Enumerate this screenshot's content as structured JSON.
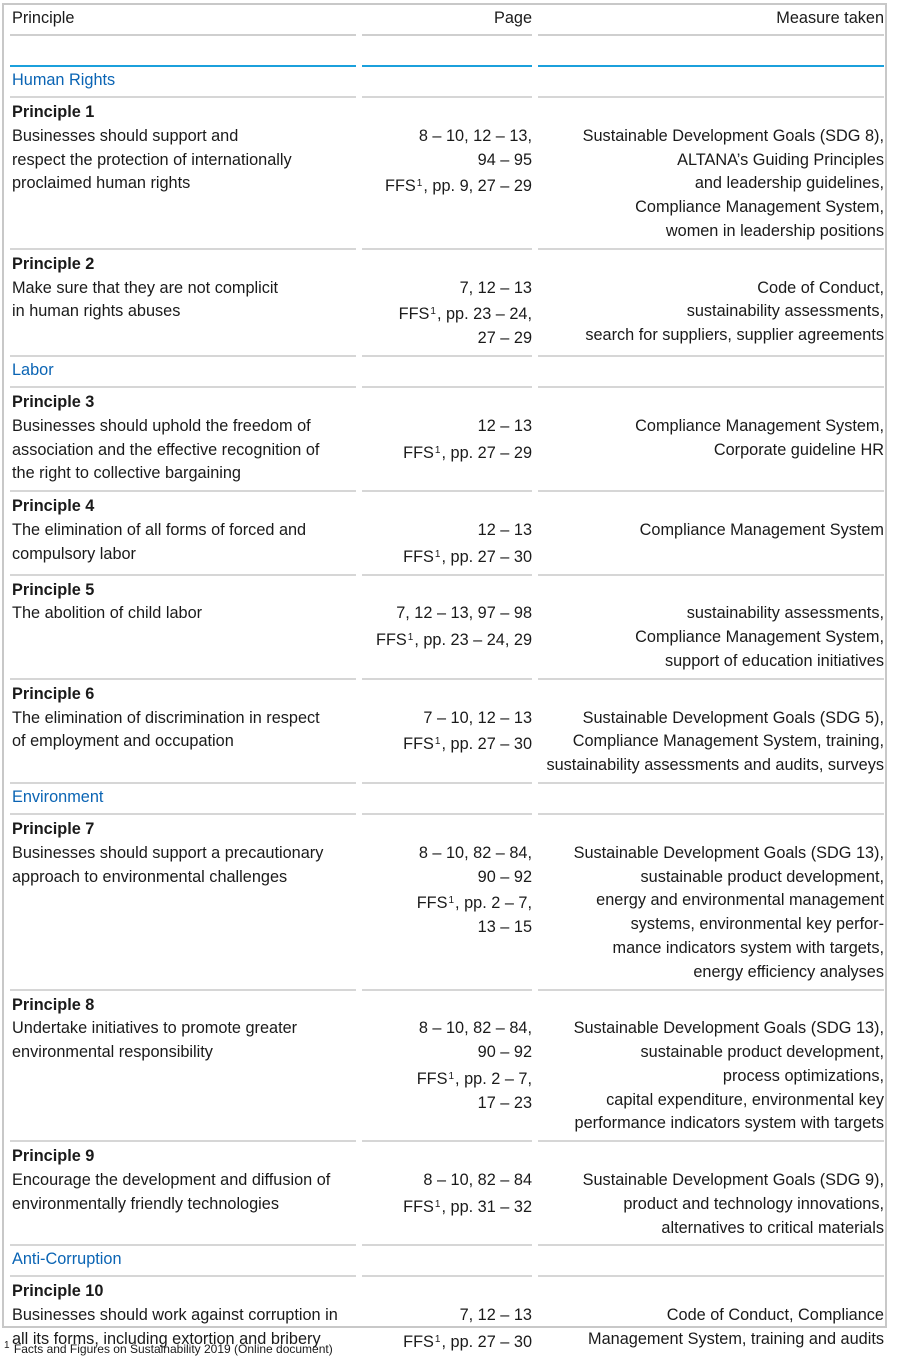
{
  "header": {
    "principle": "Principle",
    "page": "Page",
    "measure": "Measure taken"
  },
  "accent_color": "#0a64b4",
  "rule_color": "#1ba0dc",
  "rows": [
    {
      "type": "section",
      "label": "Human Rights"
    },
    {
      "type": "principle",
      "title": "Principle 1",
      "text": [
        "Businesses should support and",
        "respect the protection of internationally",
        "proclaimed human rights"
      ],
      "pages": [
        "8 – 10, 12 – 13,",
        "94 – 95",
        "FFS¹, pp. 9, 27 – 29"
      ],
      "measures": [
        "Sustainable Development Goals (SDG 8),",
        "ALTANA’s Guiding Principles",
        "and leadership guidelines,",
        "Compliance Management System,",
        "women in leadership positions"
      ]
    },
    {
      "type": "principle",
      "title": "Principle 2",
      "text": [
        "Make sure that they are not complicit",
        "in human rights abuses"
      ],
      "pages": [
        "7, 12 – 13",
        "FFS¹, pp. 23 – 24,",
        "27 – 29"
      ],
      "measures": [
        "Code of Conduct,",
        "sustainability assessments,",
        "search for suppliers, supplier agreements"
      ]
    },
    {
      "type": "section",
      "label": "Labor"
    },
    {
      "type": "principle",
      "title": "Principle 3",
      "text": [
        "Businesses should uphold the freedom of",
        "association and the effective recognition of",
        "the right to collective bargaining"
      ],
      "pages": [
        "12 – 13",
        "FFS¹, pp. 27 – 29"
      ],
      "measures": [
        "Compliance Management System,",
        "Corporate guideline HR"
      ]
    },
    {
      "type": "principle",
      "title": "Principle 4",
      "text": [
        "The elimination of all forms of forced and",
        "compulsory labor"
      ],
      "pages": [
        "12 – 13",
        "FFS¹, pp. 27 – 30"
      ],
      "measures": [
        "Compliance Management System"
      ]
    },
    {
      "type": "principle",
      "title": "Principle 5",
      "text": [
        "The abolition of child labor"
      ],
      "pages": [
        "7, 12 – 13, 97 – 98",
        "FFS¹, pp. 23 – 24, 29"
      ],
      "measures": [
        "sustainability assessments,",
        "Compliance Management System,",
        "support of education initiatives"
      ]
    },
    {
      "type": "principle",
      "title": "Principle 6",
      "text": [
        "The elimination of discrimination in respect",
        "of employment and occupation"
      ],
      "pages": [
        "7 – 10, 12 – 13",
        "FFS¹, pp. 27 – 30"
      ],
      "measures": [
        "Sustainable Development Goals (SDG 5),",
        "Compliance Management System, training,",
        "sustainability assessments and audits, surveys"
      ]
    },
    {
      "type": "section",
      "label": "Environment"
    },
    {
      "type": "principle",
      "title": "Principle 7",
      "text": [
        "Businesses should support a precautionary",
        "approach to environmental challenges"
      ],
      "pages": [
        "8 – 10, 82 – 84,",
        "90 – 92",
        "FFS¹, pp. 2 – 7,",
        "13 – 15"
      ],
      "measures": [
        "Sustainable Development Goals (SDG 13),",
        "sustainable product development,",
        "energy and environmental management",
        "systems, environmental key perfor-",
        "mance indicators system with targets,",
        "energy efficiency analyses"
      ]
    },
    {
      "type": "principle",
      "title": "Principle 8",
      "text": [
        "Undertake initiatives to promote greater",
        "environmental responsibility"
      ],
      "pages": [
        "8 – 10, 82 – 84,",
        "90 – 92",
        "FFS¹, pp. 2 – 7,",
        "17 – 23"
      ],
      "measures": [
        "Sustainable Development Goals (SDG 13),",
        "sustainable product development,",
        "process optimizations,",
        "capital expenditure, environmental key",
        "performance indicators system with targets"
      ]
    },
    {
      "type": "principle",
      "title": "Principle 9",
      "text": [
        "Encourage the development and diffusion of",
        "environmentally friendly technologies"
      ],
      "pages": [
        "8 – 10, 82 – 84",
        "FFS¹, pp. 31 – 32"
      ],
      "measures": [
        "Sustainable Development Goals (SDG 9),",
        "product and technology innovations,",
        "alternatives to critical materials"
      ]
    },
    {
      "type": "section",
      "label": "Anti-Corruption"
    },
    {
      "type": "principle",
      "title": "Principle 10",
      "text": [
        "Businesses should work against corruption in",
        "all its forms, including extortion and bribery"
      ],
      "pages": [
        "7, 12 – 13",
        "FFS¹, pp. 27 – 30"
      ],
      "measures": [
        "Code of Conduct, Compliance",
        "Management System, training and audits"
      ]
    }
  ],
  "footnote": "¹ Facts and Figures on Sustainability 2019 (Online document)"
}
